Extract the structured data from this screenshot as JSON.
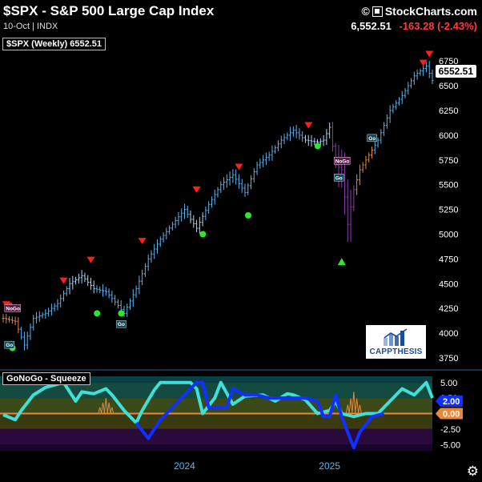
{
  "header": {
    "title": "$SPX - S&P 500 Large Cap Index",
    "subtitle": "10-Oct | INDX",
    "copyright": "StockCharts.com",
    "last_price": "6,552.51",
    "change": "-163.28 (-2.43%)"
  },
  "legend": "$SPX (Weekly) 6552.51",
  "price_badge": "6552.51",
  "logo_text": "CAPPTHESIS",
  "indicator_label": "GoNoGo - Squeeze",
  "colors": {
    "bar_blue": "#5ab4f0",
    "bar_lightblue": "#a9d8f5",
    "bar_orange": "#e7883a",
    "bar_purple": "#8a3ea8",
    "down_marker": "#ff1e1e",
    "up_marker": "#2ee62e",
    "squeeze_cyan": "#3fe0d8",
    "squeeze_blue": "#1030ff"
  },
  "chart_data": [
    {
      "type": "ohlc",
      "title": "$SPX (Weekly)",
      "period": "Weekly",
      "ylim": [
        3750,
        6800
      ],
      "y_ticks": [
        3750,
        4000,
        4250,
        4500,
        4750,
        5000,
        5250,
        5500,
        5750,
        6000,
        6250,
        6500,
        6750
      ],
      "x_tick_labels": [
        "2024",
        "2025"
      ],
      "close_path": [
        {
          "t": 0,
          "close": 4150
        },
        {
          "t": 4,
          "close": 4120
        },
        {
          "t": 7,
          "close": 3880
        },
        {
          "t": 10,
          "close": 4150
        },
        {
          "t": 14,
          "close": 4200
        },
        {
          "t": 18,
          "close": 4300
        },
        {
          "t": 22,
          "close": 4500
        },
        {
          "t": 26,
          "close": 4580
        },
        {
          "t": 30,
          "close": 4450
        },
        {
          "t": 34,
          "close": 4420
        },
        {
          "t": 38,
          "close": 4280
        },
        {
          "t": 40,
          "close": 4200
        },
        {
          "t": 44,
          "close": 4450
        },
        {
          "t": 48,
          "close": 4750
        },
        {
          "t": 52,
          "close": 4950
        },
        {
          "t": 56,
          "close": 5100
        },
        {
          "t": 60,
          "close": 5250
        },
        {
          "t": 62,
          "close": 5150
        },
        {
          "t": 64,
          "close": 5060
        },
        {
          "t": 68,
          "close": 5300
        },
        {
          "t": 72,
          "close": 5500
        },
        {
          "t": 76,
          "close": 5600
        },
        {
          "t": 80,
          "close": 5420
        },
        {
          "t": 84,
          "close": 5700
        },
        {
          "t": 88,
          "close": 5800
        },
        {
          "t": 92,
          "close": 5950
        },
        {
          "t": 96,
          "close": 6050
        },
        {
          "t": 100,
          "close": 5950
        },
        {
          "t": 104,
          "close": 5930
        },
        {
          "t": 106,
          "close": 5950
        },
        {
          "t": 108,
          "close": 6080
        },
        {
          "t": 110,
          "close": 5700
        },
        {
          "t": 112,
          "close": 5650
        },
        {
          "t": 114,
          "close": 5100
        },
        {
          "t": 116,
          "close": 5450
        },
        {
          "t": 118,
          "close": 5650
        },
        {
          "t": 121,
          "close": 5800
        },
        {
          "t": 124,
          "close": 5950
        },
        {
          "t": 128,
          "close": 6250
        },
        {
          "t": 132,
          "close": 6400
        },
        {
          "t": 136,
          "close": 6600
        },
        {
          "t": 140,
          "close": 6700
        },
        {
          "t": 142,
          "close": 6552.51
        }
      ],
      "down_markers": [
        {
          "t": 1,
          "v": 4290
        },
        {
          "t": 20,
          "v": 4530
        },
        {
          "t": 29,
          "v": 4740
        },
        {
          "t": 46,
          "v": 4930
        },
        {
          "t": 64,
          "v": 5450
        },
        {
          "t": 78,
          "v": 5680
        },
        {
          "t": 101,
          "v": 6100
        },
        {
          "t": 139,
          "v": 6730
        },
        {
          "t": 141,
          "v": 6820
        }
      ],
      "up_markers": [
        {
          "t": 112,
          "v": 4720
        }
      ],
      "dots_red": [
        {
          "t": 1,
          "v": 4280
        }
      ],
      "dots_green": [
        {
          "t": 2,
          "v": 3850
        },
        {
          "t": 30,
          "v": 4200
        },
        {
          "t": 38,
          "v": 4200
        },
        {
          "t": 65,
          "v": 5000
        },
        {
          "t": 80,
          "v": 5190
        },
        {
          "t": 103,
          "v": 5890
        }
      ],
      "labels": [
        {
          "text": "NoGo",
          "t": 1,
          "v": 4240
        },
        {
          "text": "Go",
          "t": 1,
          "v": 3870
        },
        {
          "text": "Go",
          "t": 38,
          "v": 4080
        },
        {
          "text": "NoGo",
          "t": 110,
          "v": 5730
        },
        {
          "text": "Go",
          "t": 110,
          "v": 5560
        },
        {
          "text": "Go",
          "t": 121,
          "v": 5960
        }
      ],
      "last_value": 6552.51
    },
    {
      "type": "line",
      "title": "GoNoGo - Squeeze",
      "ylim": [
        -6,
        6
      ],
      "y_ticks": [
        5.0,
        2.5,
        0.0,
        -2.5,
        -5.0
      ],
      "series": [
        {
          "color_name": "cyan",
          "x": [
            0,
            4,
            6,
            10,
            14,
            20,
            24,
            26,
            30,
            34,
            36,
            40,
            44,
            46,
            50,
            52,
            56,
            60,
            62,
            64,
            66,
            70,
            72,
            76,
            80,
            86,
            90,
            94,
            96,
            100,
            104,
            108,
            110,
            112,
            116,
            120,
            124,
            128,
            132,
            136,
            140,
            142
          ],
          "values": [
            -0.2,
            -1,
            0.5,
            3,
            4.2,
            5,
            2,
            3.5,
            3.2,
            4,
            3,
            0.5,
            -1.5,
            0.5,
            3.8,
            5,
            5,
            5,
            5,
            4,
            0,
            2.5,
            5,
            1.5,
            2.8,
            3,
            2,
            3.2,
            3,
            2.2,
            0,
            0.5,
            2,
            0,
            -0.5,
            0,
            0,
            2,
            4,
            3,
            5,
            2.5
          ]
        },
        {
          "color_name": "blue",
          "x": [
            44,
            48,
            52,
            56,
            60,
            64,
            66,
            68,
            74,
            76,
            80,
            84,
            88,
            92,
            96,
            100,
            104,
            106,
            108,
            110,
            112,
            114,
            116,
            118,
            122,
            126
          ],
          "values": [
            -1.5,
            -4,
            -1,
            1,
            3,
            5,
            5,
            1,
            1,
            4,
            3,
            3,
            2.5,
            2.5,
            2.5,
            2.5,
            2,
            -0.5,
            -0.5,
            3,
            -0.5,
            -3,
            -5.5,
            -3,
            -0.5,
            0
          ]
        }
      ],
      "last_values": [
        2.0,
        0.0
      ],
      "squeeze_spikes": [
        {
          "t": 34,
          "v": 2.5
        },
        {
          "t": 116,
          "v": 3.5
        }
      ]
    }
  ]
}
